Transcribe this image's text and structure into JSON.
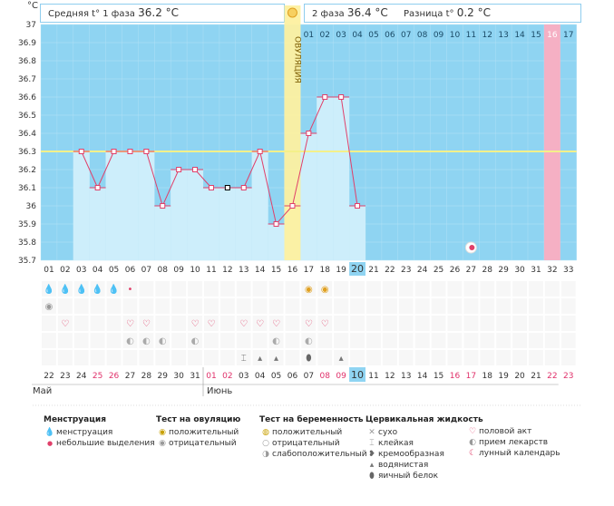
{
  "header": {
    "unit": "°C",
    "phase1_label": "Средняя t° 1 фаза",
    "phase1_value": "36.2 °C",
    "phase2_label": "2 фаза",
    "phase2_value": "36.4 °C",
    "diff_label": "Разница t°",
    "diff_value": "0.2 °C",
    "ovulation_label": "ОВУЛЯЦИЯ"
  },
  "colors": {
    "bg": "#8fd4f2",
    "bar": "#cdeefb",
    "line": "#e0406a",
    "coverline": "#f4f08a",
    "ovulation": "#fdf0a0",
    "period_col": "#f5b0c4",
    "grid": "#b8e3f6",
    "red_date": "#e0306a"
  },
  "chart_data": {
    "type": "line",
    "title": "",
    "ylabel": "°C",
    "ylim": [
      35.7,
      37
    ],
    "yticks": [
      "37",
      "36.9",
      "36.8",
      "36.7",
      "36.6",
      "36.5",
      "36.4",
      "36.3",
      "36.2",
      "36.1",
      "36",
      "35.9",
      "35.8",
      "35.7"
    ],
    "coverline": 36.3,
    "cycle_days": [
      "01",
      "02",
      "03",
      "04",
      "05",
      "06",
      "07",
      "08",
      "09",
      "10",
      "11",
      "12",
      "13",
      "14",
      "15",
      "16",
      "17",
      "18",
      "19",
      "20",
      "21",
      "22",
      "23",
      "24",
      "25",
      "26",
      "27",
      "28",
      "29",
      "30",
      "31",
      "32",
      "33"
    ],
    "dates": [
      "22",
      "23",
      "24",
      "25",
      "26",
      "27",
      "28",
      "29",
      "30",
      "31",
      "01",
      "02",
      "03",
      "04",
      "05",
      "06",
      "07",
      "08",
      "09",
      "10",
      "11",
      "12",
      "13",
      "14",
      "15",
      "16",
      "17",
      "18",
      "19",
      "20",
      "21",
      "22",
      "23"
    ],
    "red_date_indices": [
      3,
      4,
      10,
      11,
      17,
      18,
      25,
      26,
      31,
      32
    ],
    "phase2_days": [
      "01",
      "02",
      "03",
      "04",
      "05",
      "06",
      "07",
      "08",
      "09",
      "10",
      "11",
      "12",
      "13",
      "14",
      "15",
      "16",
      "17"
    ],
    "ovulation_day_index": 15,
    "current_day_index": 19,
    "period_day_index": 31,
    "temperatures": [
      null,
      null,
      36.3,
      36.1,
      36.3,
      36.3,
      36.3,
      36.0,
      36.2,
      36.2,
      36.1,
      36.1,
      36.1,
      36.3,
      35.9,
      36.0,
      36.4,
      36.6,
      36.6,
      36.0,
      null,
      null,
      null,
      null,
      null,
      null,
      null,
      null,
      null,
      null,
      null,
      null,
      null
    ],
    "months": [
      "Май",
      "Июнь"
    ]
  },
  "legend": {
    "menstruation": {
      "title": "Менструация",
      "items": [
        "менструация",
        "небольшие выделения"
      ]
    },
    "ovulation_test": {
      "title": "Тест на овуляцию",
      "items": [
        "положительный",
        "отрицательный"
      ]
    },
    "pregnancy_test": {
      "title": "Тест на беременность",
      "items": [
        "положительный",
        "отрицательный",
        "слабоположительный"
      ]
    },
    "cervical": {
      "title": "Цервикальная жидкость",
      "items": [
        "сухо",
        "клейкая",
        "кремообразная",
        "водянистая",
        "яичный белок"
      ]
    },
    "other": {
      "items": [
        "половой акт",
        "прием лекарств",
        "лунный календарь"
      ]
    }
  }
}
